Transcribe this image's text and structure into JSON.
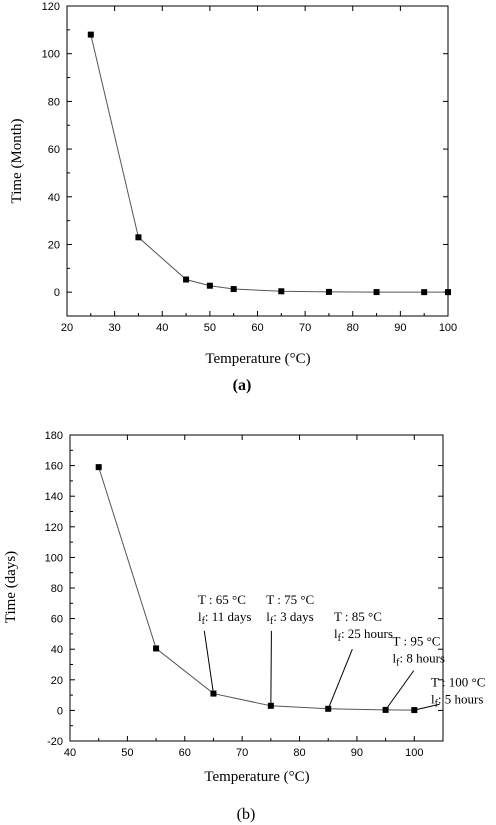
{
  "chart_data": [
    {
      "type": "line",
      "panel_label": "(a)",
      "xlabel": "Temperature (°C)",
      "ylabel": "Time (Month)",
      "xlim": [
        20,
        100
      ],
      "ylim": [
        -10,
        120
      ],
      "xticks": [
        20,
        30,
        40,
        50,
        60,
        70,
        80,
        90,
        100
      ],
      "yticks": [
        0,
        20,
        40,
        60,
        80,
        100,
        120
      ],
      "grid": false,
      "series": [
        {
          "marker": "square",
          "color": "#000000",
          "x": [
            25,
            35,
            45,
            50,
            55,
            65,
            75,
            85,
            95,
            100
          ],
          "y": [
            108,
            23,
            5.3,
            2.7,
            1.3,
            0.37,
            0.1,
            0.035,
            0.01,
            0.007
          ]
        }
      ],
      "annotations": []
    },
    {
      "type": "line",
      "panel_label": "(b)",
      "xlabel": "Temperature (°C)",
      "ylabel": "Time (days)",
      "xlim": [
        40,
        105
      ],
      "ylim": [
        -20,
        180
      ],
      "xticks": [
        40,
        50,
        60,
        70,
        80,
        90,
        100
      ],
      "yticks": [
        -20,
        0,
        20,
        40,
        60,
        80,
        100,
        120,
        140,
        160,
        180
      ],
      "grid": false,
      "series": [
        {
          "marker": "square",
          "color": "#000000",
          "x": [
            45,
            55,
            65,
            75,
            85,
            95,
            100
          ],
          "y": [
            159,
            40.5,
            11,
            3,
            1.04,
            0.33,
            0.21
          ]
        }
      ],
      "annotations": [
        {
          "line1": "T : 65 °C",
          "lf": "l",
          "sub": "f",
          "rest": ": 11 days",
          "point": [
            65,
            11
          ],
          "text_at": [
            62.3,
            61
          ],
          "line_end": [
            63.4,
            52
          ]
        },
        {
          "line1": "T : 75 °C",
          "lf": "l",
          "sub": "f",
          "rest": ": 3 days",
          "point": [
            75,
            3
          ],
          "text_at": [
            74.2,
            61
          ],
          "line_end": [
            75.1,
            52
          ]
        },
        {
          "line1": "T : 85 °C",
          "lf": "l",
          "sub": "f",
          "rest": ": 25 hours",
          "point": [
            85,
            1.04
          ],
          "text_at": [
            86,
            50
          ],
          "line_end": [
            89.2,
            40
          ]
        },
        {
          "line1": "T : 95 °C",
          "lf": "l",
          "sub": "f",
          "rest": ": 8 hours",
          "point": [
            95,
            0.33
          ],
          "text_at": [
            96.2,
            34
          ],
          "line_end": [
            99.9,
            26
          ]
        },
        {
          "line1": "T : 100 °C",
          "lf": "l",
          "sub": "f",
          "rest": ": 5 hours",
          "point": [
            100,
            0.21
          ],
          "text_at": [
            102.9,
            7
          ],
          "line_end": [
            104.4,
            4
          ]
        }
      ]
    }
  ]
}
